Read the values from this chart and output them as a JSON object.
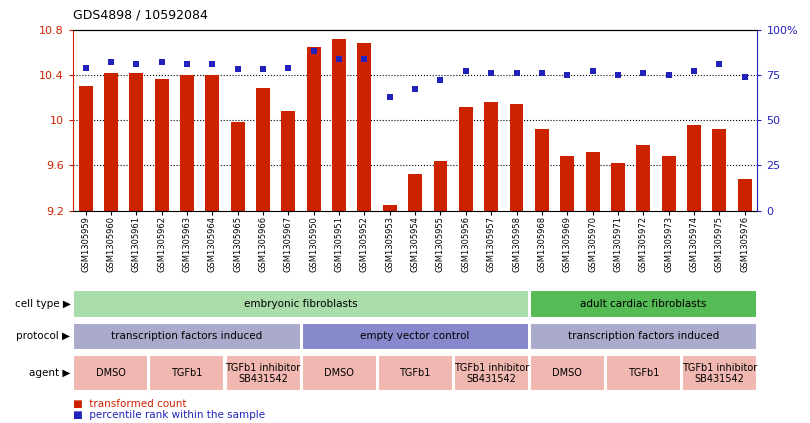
{
  "title": "GDS4898 / 10592084",
  "samples": [
    "GSM1305959",
    "GSM1305960",
    "GSM1305961",
    "GSM1305962",
    "GSM1305963",
    "GSM1305964",
    "GSM1305965",
    "GSM1305966",
    "GSM1305967",
    "GSM1305950",
    "GSM1305951",
    "GSM1305952",
    "GSM1305953",
    "GSM1305954",
    "GSM1305955",
    "GSM1305956",
    "GSM1305957",
    "GSM1305958",
    "GSM1305968",
    "GSM1305969",
    "GSM1305970",
    "GSM1305971",
    "GSM1305972",
    "GSM1305973",
    "GSM1305974",
    "GSM1305975",
    "GSM1305976"
  ],
  "bar_values": [
    10.3,
    10.42,
    10.42,
    10.36,
    10.4,
    10.4,
    9.98,
    10.28,
    10.08,
    10.65,
    10.72,
    10.68,
    9.25,
    9.52,
    9.64,
    10.12,
    10.16,
    10.14,
    9.92,
    9.68,
    9.72,
    9.62,
    9.78,
    9.68,
    9.96,
    9.92,
    9.48
  ],
  "percentile_values": [
    79,
    82,
    81,
    82,
    81,
    81,
    78,
    78,
    79,
    88,
    84,
    84,
    63,
    67,
    72,
    77,
    76,
    76,
    76,
    75,
    77,
    75,
    76,
    75,
    77,
    81,
    74
  ],
  "ymin": 9.2,
  "ymax": 10.8,
  "yticks": [
    9.2,
    9.6,
    10.0,
    10.4,
    10.8
  ],
  "ytick_labels": [
    "9.2",
    "9.6",
    "10",
    "10.4",
    "10.8"
  ],
  "y2ticks": [
    0,
    25,
    50,
    75,
    100
  ],
  "y2tick_labels": [
    "0",
    "25",
    "50",
    "75",
    "100%"
  ],
  "hlines": [
    9.6,
    10.0,
    10.4
  ],
  "bar_color": "#cc2200",
  "dot_color": "#2222bb",
  "cell_type_spans": [
    {
      "label": "embryonic fibroblasts",
      "start": 0,
      "end": 17,
      "color": "#aaddaa"
    },
    {
      "label": "adult cardiac fibroblasts",
      "start": 18,
      "end": 26,
      "color": "#55bb55"
    }
  ],
  "protocol_spans": [
    {
      "label": "transcription factors induced",
      "start": 0,
      "end": 8,
      "color": "#aaaacc"
    },
    {
      "label": "empty vector control",
      "start": 9,
      "end": 17,
      "color": "#8888cc"
    },
    {
      "label": "transcription factors induced",
      "start": 18,
      "end": 26,
      "color": "#aaaacc"
    }
  ],
  "agent_spans": [
    {
      "label": "DMSO",
      "start": 0,
      "end": 2,
      "color": "#f0b8b0"
    },
    {
      "label": "TGFb1",
      "start": 3,
      "end": 5,
      "color": "#f0b8b0"
    },
    {
      "label": "TGFb1 inhibitor\nSB431542",
      "start": 6,
      "end": 8,
      "color": "#f0b8b0"
    },
    {
      "label": "DMSO",
      "start": 9,
      "end": 11,
      "color": "#f0b8b0"
    },
    {
      "label": "TGFb1",
      "start": 12,
      "end": 14,
      "color": "#f0b8b0"
    },
    {
      "label": "TGFb1 inhibitor\nSB431542",
      "start": 15,
      "end": 17,
      "color": "#f0b8b0"
    },
    {
      "label": "DMSO",
      "start": 18,
      "end": 20,
      "color": "#f0b8b0"
    },
    {
      "label": "TGFb1",
      "start": 21,
      "end": 23,
      "color": "#f0b8b0"
    },
    {
      "label": "TGFb1 inhibitor\nSB431542",
      "start": 24,
      "end": 26,
      "color": "#f0b8b0"
    }
  ],
  "row_labels": [
    "cell type",
    "protocol",
    "agent"
  ]
}
